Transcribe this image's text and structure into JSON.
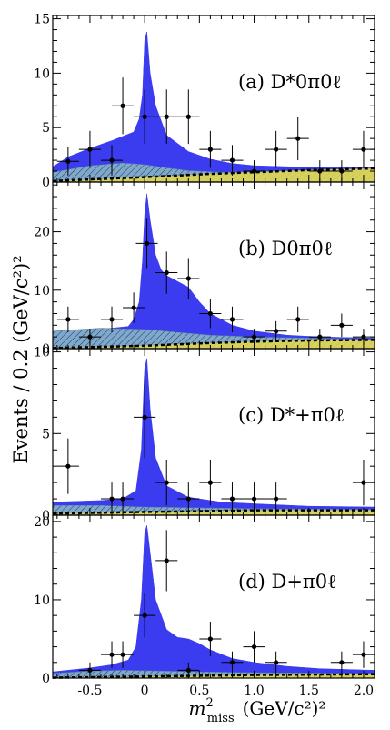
{
  "ylabel": "Events / 0.2 (GeV/c²)²",
  "xlabel": "m²miss (GeV/c²)²",
  "xlabel_main": "m",
  "xlabel_sup": "2",
  "xlabel_sub": "miss",
  "xlabel_units": "(GeV/c²)²",
  "colors": {
    "signal": "#3b3bf0",
    "background": "#7fa8cc",
    "hatch": "#1a3a55",
    "bottom_band": "#e6d84a",
    "dashed": "#000000",
    "points": "#000000"
  },
  "chart_data": [
    {
      "type": "area",
      "label": "(a) D*0π0ℓ",
      "xlim": [
        -0.84,
        2.1
      ],
      "ylim": [
        0,
        15.3
      ],
      "xticks": [
        -0.5,
        0,
        0.5,
        1.0,
        1.5,
        2.0
      ],
      "yticks": [
        0,
        5,
        10,
        15
      ],
      "ytick_labels": [
        "0",
        "5",
        "10",
        "15"
      ],
      "points": [
        {
          "x": -0.7,
          "y": 1.9,
          "yerr": 1.3
        },
        {
          "x": -0.5,
          "y": 3.0,
          "yerr": 1.7
        },
        {
          "x": -0.3,
          "y": 2.0,
          "yerr": 1.4
        },
        {
          "x": -0.2,
          "y": 7.0,
          "yerr": 2.6
        },
        {
          "x": 0.0,
          "y": 6.0,
          "yerr": 2.5
        },
        {
          "x": 0.2,
          "y": 6.0,
          "yerr": 2.5
        },
        {
          "x": 0.4,
          "y": 6.0,
          "yerr": 2.5
        },
        {
          "x": 0.6,
          "y": 3.0,
          "yerr": 1.7
        },
        {
          "x": 0.8,
          "y": 2.0,
          "yerr": 1.4
        },
        {
          "x": 1.0,
          "y": 1.0,
          "yerr": 1.0
        },
        {
          "x": 1.2,
          "y": 3.0,
          "yerr": 1.7
        },
        {
          "x": 1.4,
          "y": 4.0,
          "yerr": 2.0
        },
        {
          "x": 1.6,
          "y": 1.0,
          "yerr": 1.0
        },
        {
          "x": 1.8,
          "y": 1.0,
          "yerr": 1.0
        },
        {
          "x": 2.0,
          "y": 3.0,
          "yerr": 1.7
        }
      ],
      "total_curve": [
        [
          -0.84,
          1.4
        ],
        [
          -0.7,
          2.3
        ],
        [
          -0.5,
          3.1
        ],
        [
          -0.3,
          3.8
        ],
        [
          -0.1,
          4.6
        ],
        [
          -0.05,
          5.8
        ],
        [
          -0.02,
          8.0
        ],
        [
          0.0,
          13.0
        ],
        [
          0.02,
          13.8
        ],
        [
          0.05,
          10.0
        ],
        [
          0.1,
          7.0
        ],
        [
          0.2,
          4.3
        ],
        [
          0.4,
          2.8
        ],
        [
          0.6,
          2.1
        ],
        [
          0.8,
          1.7
        ],
        [
          1.0,
          1.5
        ],
        [
          1.5,
          1.35
        ],
        [
          2.1,
          1.3
        ]
      ],
      "background_curve": [
        [
          -0.84,
          0.9
        ],
        [
          -0.5,
          1.5
        ],
        [
          -0.2,
          1.75
        ],
        [
          0.0,
          1.6
        ],
        [
          0.2,
          1.3
        ],
        [
          0.4,
          1.05
        ],
        [
          0.7,
          0.9
        ],
        [
          1.0,
          0.95
        ],
        [
          1.5,
          1.1
        ],
        [
          2.1,
          1.25
        ]
      ],
      "dashed_curve": [
        [
          -0.84,
          0.1
        ],
        [
          0.0,
          0.45
        ],
        [
          0.6,
          0.75
        ],
        [
          1.0,
          0.9
        ],
        [
          1.5,
          1.1
        ],
        [
          2.1,
          1.25
        ]
      ]
    },
    {
      "type": "area",
      "label": "(b) D0π0ℓ",
      "xlim": [
        -0.84,
        2.1
      ],
      "ylim": [
        0,
        28.5
      ],
      "xticks": [
        -0.5,
        0,
        0.5,
        1.0,
        1.5,
        2.0
      ],
      "yticks": [
        0,
        10,
        20
      ],
      "ytick_labels": [
        "0",
        "10",
        "20"
      ],
      "points": [
        {
          "x": -0.7,
          "y": 5.0,
          "yerr": 2.2
        },
        {
          "x": -0.5,
          "y": 2.0,
          "yerr": 1.4
        },
        {
          "x": -0.3,
          "y": 5.0,
          "yerr": 2.2
        },
        {
          "x": -0.1,
          "y": 7.0,
          "yerr": 2.6
        },
        {
          "x": 0.02,
          "y": 18.0,
          "yerr": 4.2
        },
        {
          "x": 0.2,
          "y": 13.0,
          "yerr": 3.6
        },
        {
          "x": 0.4,
          "y": 12.0,
          "yerr": 3.5
        },
        {
          "x": 0.6,
          "y": 6.0,
          "yerr": 2.5
        },
        {
          "x": 0.8,
          "y": 5.0,
          "yerr": 2.2
        },
        {
          "x": 1.0,
          "y": 2.0,
          "yerr": 1.4
        },
        {
          "x": 1.2,
          "y": 3.0,
          "yerr": 1.7
        },
        {
          "x": 1.4,
          "y": 5.0,
          "yerr": 2.2
        },
        {
          "x": 1.6,
          "y": 2.0,
          "yerr": 1.4
        },
        {
          "x": 1.8,
          "y": 4.0,
          "yerr": 2.0
        },
        {
          "x": 2.0,
          "y": 2.0,
          "yerr": 1.4
        }
      ],
      "total_curve": [
        [
          -0.84,
          2.5
        ],
        [
          -0.6,
          3.0
        ],
        [
          -0.3,
          3.5
        ],
        [
          -0.15,
          3.8
        ],
        [
          -0.1,
          5.0
        ],
        [
          -0.05,
          8.0
        ],
        [
          -0.02,
          15.0
        ],
        [
          0.0,
          23.0
        ],
        [
          0.02,
          26.5
        ],
        [
          0.05,
          22.0
        ],
        [
          0.1,
          16.0
        ],
        [
          0.15,
          13.5
        ],
        [
          0.2,
          12.5
        ],
        [
          0.3,
          11.5
        ],
        [
          0.4,
          10.5
        ],
        [
          0.5,
          8.0
        ],
        [
          0.6,
          6.0
        ],
        [
          0.8,
          4.0
        ],
        [
          1.0,
          3.0
        ],
        [
          1.3,
          2.3
        ],
        [
          1.6,
          2.0
        ],
        [
          2.1,
          1.8
        ]
      ],
      "background_curve": [
        [
          -0.84,
          3.0
        ],
        [
          -0.4,
          3.5
        ],
        [
          0.0,
          3.3
        ],
        [
          0.3,
          2.8
        ],
        [
          0.6,
          2.3
        ],
        [
          1.0,
          2.0
        ],
        [
          1.5,
          1.8
        ],
        [
          2.1,
          1.6
        ]
      ],
      "dashed_curve": [
        [
          -0.84,
          0.1
        ],
        [
          0.0,
          0.5
        ],
        [
          0.5,
          0.9
        ],
        [
          1.0,
          1.2
        ],
        [
          1.5,
          1.4
        ],
        [
          2.1,
          1.5
        ]
      ]
    },
    {
      "type": "area",
      "label": "(c) D*+π0ℓ",
      "xlim": [
        -0.84,
        2.1
      ],
      "ylim": [
        0,
        10.2
      ],
      "xticks": [
        -0.5,
        0,
        0.5,
        1.0,
        1.5,
        2.0
      ],
      "yticks": [
        0,
        5,
        10
      ],
      "ytick_labels": [
        "0",
        "5",
        "10"
      ],
      "points": [
        {
          "x": -0.7,
          "y": 3.0,
          "yerr": 1.7
        },
        {
          "x": -0.3,
          "y": 1.0,
          "yerr": 1.0
        },
        {
          "x": -0.2,
          "y": 1.0,
          "yerr": 1.0
        },
        {
          "x": 0.0,
          "y": 6.0,
          "yerr": 2.5
        },
        {
          "x": 0.2,
          "y": 2.0,
          "yerr": 1.4
        },
        {
          "x": 0.4,
          "y": 1.0,
          "yerr": 1.0
        },
        {
          "x": 0.6,
          "y": 2.0,
          "yerr": 1.4
        },
        {
          "x": 0.8,
          "y": 1.0,
          "yerr": 1.0
        },
        {
          "x": 1.0,
          "y": 1.0,
          "yerr": 1.0
        },
        {
          "x": 1.2,
          "y": 1.0,
          "yerr": 1.0
        },
        {
          "x": 2.0,
          "y": 2.0,
          "yerr": 1.4
        }
      ],
      "total_curve": [
        [
          -0.84,
          0.8
        ],
        [
          -0.4,
          0.9
        ],
        [
          -0.2,
          1.0
        ],
        [
          -0.08,
          1.5
        ],
        [
          -0.03,
          4.0
        ],
        [
          0.0,
          9.0
        ],
        [
          0.02,
          9.6
        ],
        [
          0.05,
          6.5
        ],
        [
          0.1,
          3.5
        ],
        [
          0.2,
          1.8
        ],
        [
          0.4,
          1.1
        ],
        [
          0.7,
          0.8
        ],
        [
          1.0,
          0.7
        ],
        [
          1.5,
          0.55
        ],
        [
          2.1,
          0.5
        ]
      ],
      "background_curve": [
        [
          -0.84,
          0.6
        ],
        [
          -0.4,
          0.6
        ],
        [
          0.0,
          0.5
        ],
        [
          0.5,
          0.45
        ],
        [
          1.0,
          0.4
        ],
        [
          2.1,
          0.35
        ]
      ],
      "dashed_curve": [
        [
          -0.84,
          0.1
        ],
        [
          0.0,
          0.2
        ],
        [
          1.0,
          0.3
        ],
        [
          2.1,
          0.3
        ]
      ]
    },
    {
      "type": "area",
      "label": "(d) D+π0ℓ",
      "xlim": [
        -0.84,
        2.1
      ],
      "ylim": [
        0,
        20.8
      ],
      "xticks": [
        -0.5,
        0,
        0.5,
        1.0,
        1.5,
        2.0
      ],
      "xtick_labels": [
        "-0.5",
        "0",
        "0.5",
        "1.0",
        "1.5",
        "2.0"
      ],
      "yticks": [
        0,
        10,
        20
      ],
      "ytick_labels": [
        "0",
        "10",
        "20"
      ],
      "points": [
        {
          "x": -0.5,
          "y": 1.0,
          "yerr": 1.0
        },
        {
          "x": -0.3,
          "y": 3.0,
          "yerr": 1.7
        },
        {
          "x": -0.2,
          "y": 3.0,
          "yerr": 1.7
        },
        {
          "x": 0.0,
          "y": 8.0,
          "yerr": 2.8
        },
        {
          "x": 0.2,
          "y": 15.0,
          "yerr": 3.9
        },
        {
          "x": 0.4,
          "y": 1.0,
          "yerr": 1.0
        },
        {
          "x": 0.6,
          "y": 5.0,
          "yerr": 2.2
        },
        {
          "x": 0.8,
          "y": 2.0,
          "yerr": 1.4
        },
        {
          "x": 1.0,
          "y": 4.0,
          "yerr": 2.0
        },
        {
          "x": 1.2,
          "y": 2.0,
          "yerr": 1.4
        },
        {
          "x": 1.8,
          "y": 2.0,
          "yerr": 1.4
        },
        {
          "x": 2.0,
          "y": 3.0,
          "yerr": 1.7
        }
      ],
      "total_curve": [
        [
          -0.84,
          0.8
        ],
        [
          -0.5,
          1.3
        ],
        [
          -0.3,
          1.7
        ],
        [
          -0.15,
          2.3
        ],
        [
          -0.08,
          4.0
        ],
        [
          -0.03,
          10.0
        ],
        [
          0.0,
          18.5
        ],
        [
          0.02,
          19.5
        ],
        [
          0.05,
          16.0
        ],
        [
          0.1,
          10.0
        ],
        [
          0.2,
          6.2
        ],
        [
          0.3,
          5.2
        ],
        [
          0.4,
          5.0
        ],
        [
          0.5,
          4.4
        ],
        [
          0.6,
          3.6
        ],
        [
          0.8,
          2.5
        ],
        [
          1.0,
          2.0
        ],
        [
          1.3,
          1.5
        ],
        [
          1.6,
          1.2
        ],
        [
          2.1,
          1.0
        ]
      ],
      "background_curve": [
        [
          -0.84,
          0.6
        ],
        [
          -0.5,
          0.9
        ],
        [
          -0.2,
          1.0
        ],
        [
          0.0,
          0.95
        ],
        [
          0.5,
          0.8
        ],
        [
          1.0,
          0.7
        ],
        [
          1.5,
          0.65
        ],
        [
          2.1,
          0.6
        ]
      ],
      "dashed_curve": [
        [
          -0.84,
          0.05
        ],
        [
          0.0,
          0.2
        ],
        [
          1.0,
          0.4
        ],
        [
          2.1,
          0.5
        ]
      ]
    }
  ]
}
